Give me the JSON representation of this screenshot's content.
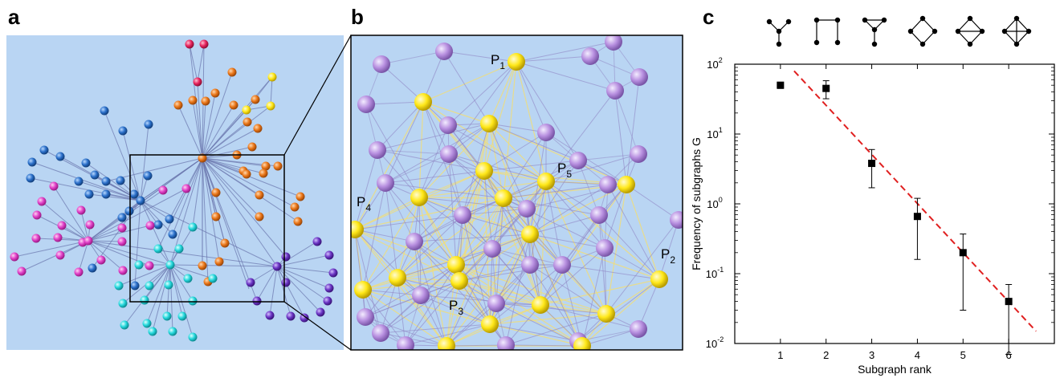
{
  "panels": {
    "a": "a",
    "b": "b",
    "c": "c"
  },
  "zoom_labels": {
    "p1": {
      "base": "P",
      "sub": "1"
    },
    "p2": {
      "base": "P",
      "sub": "2"
    },
    "p3": {
      "base": "P",
      "sub": "3"
    },
    "p4": {
      "base": "P",
      "sub": "4"
    },
    "p5": {
      "base": "P",
      "sub": "5"
    }
  },
  "colors": {
    "network_bg": "#b9d5f3",
    "edge": "#6a75ad",
    "pink": "#e040c7",
    "blue": "#2a6fc9",
    "cyan": "#24d8dc",
    "orange": "#ea7618",
    "purple": "#6b34c4",
    "red": "#e8245f",
    "yellow": "#ffeb1a",
    "zoom_node": "#b890e0",
    "fit_line": "#e02020"
  },
  "chart_data": {
    "type": "scatter",
    "xlabel": "Subgraph rank",
    "ylabel": "Frequency of subgraphs G",
    "x_ticks": [
      "1",
      "2",
      "3",
      "4",
      "5",
      "6"
    ],
    "y_ticks": [
      {
        "base": "10",
        "exp": "-2",
        "value": 0.01
      },
      {
        "base": "10",
        "exp": "-1",
        "value": 0.1
      },
      {
        "base": "10",
        "exp": "0",
        "value": 1
      },
      {
        "base": "10",
        "exp": "1",
        "value": 10
      },
      {
        "base": "10",
        "exp": "2",
        "value": 100
      }
    ],
    "yscale": "log",
    "xlim": [
      0,
      7
    ],
    "ylim": [
      0.01,
      100
    ],
    "series": [
      {
        "points": [
          {
            "x": 1,
            "y": 50,
            "err_low": 45,
            "err_high": 55
          },
          {
            "x": 2,
            "y": 45,
            "err_low": 32,
            "err_high": 58
          },
          {
            "x": 3,
            "y": 3.8,
            "err_low": 1.7,
            "err_high": 6.0
          },
          {
            "x": 4,
            "y": 0.66,
            "err_low": 0.16,
            "err_high": 1.2
          },
          {
            "x": 5,
            "y": 0.2,
            "err_low": 0.03,
            "err_high": 0.37
          },
          {
            "x": 6,
            "y": 0.04,
            "err_low": 0.007,
            "err_high": 0.07
          }
        ]
      }
    ],
    "fit_line": {
      "style": "dashed",
      "x": [
        1.3,
        6.6
      ],
      "y": [
        80,
        0.015
      ]
    },
    "motifs": [
      "tree-Y",
      "path-square",
      "Y-triangle",
      "cycle-4",
      "diamond-chord",
      "complete-4"
    ]
  }
}
